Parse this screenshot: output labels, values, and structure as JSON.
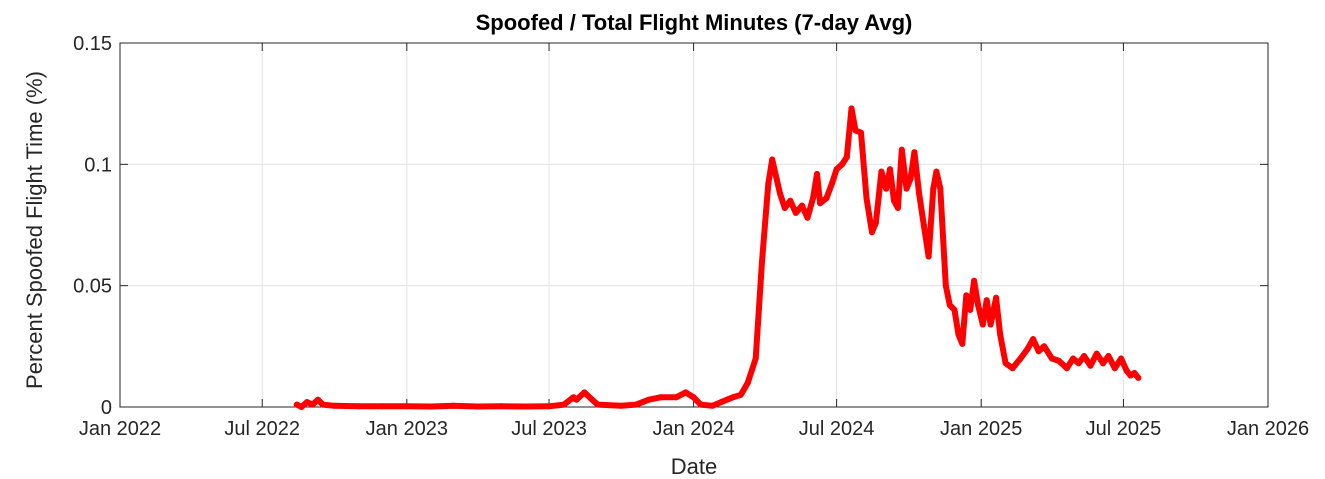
{
  "chart_data": {
    "type": "line",
    "title": "Spoofed / Total Flight Minutes (7-day Avg)",
    "xlabel": "Date",
    "ylabel": "Percent Spoofed Flight Time (%)",
    "ylim": [
      0,
      0.15
    ],
    "xlim": [
      "2022-01-01",
      "2026-01-01"
    ],
    "grid": true,
    "y_ticks": [
      {
        "value": 0,
        "label": "0"
      },
      {
        "value": 0.05,
        "label": "0.05"
      },
      {
        "value": 0.1,
        "label": "0.1"
      },
      {
        "value": 0.15,
        "label": "0.15"
      }
    ],
    "x_ticks": [
      {
        "value": "2022-01-01",
        "label": "Jan 2022"
      },
      {
        "value": "2022-07-01",
        "label": "Jul 2022"
      },
      {
        "value": "2023-01-01",
        "label": "Jan 2023"
      },
      {
        "value": "2023-07-01",
        "label": "Jul 2023"
      },
      {
        "value": "2024-01-01",
        "label": "Jan 2024"
      },
      {
        "value": "2024-07-01",
        "label": "Jul 2024"
      },
      {
        "value": "2025-01-01",
        "label": "Jan 2025"
      },
      {
        "value": "2025-07-01",
        "label": "Jul 2025"
      },
      {
        "value": "2026-01-01",
        "label": "Jan 2026"
      }
    ],
    "series": [
      {
        "color": "#ff0000",
        "points": [
          [
            "2022-08-14",
            0.001
          ],
          [
            "2022-08-20",
            0.0
          ],
          [
            "2022-08-27",
            0.002
          ],
          [
            "2022-09-03",
            0.001
          ],
          [
            "2022-09-10",
            0.003
          ],
          [
            "2022-09-16",
            0.001
          ],
          [
            "2022-10-01",
            0.0005
          ],
          [
            "2022-11-01",
            0.0003
          ],
          [
            "2022-12-01",
            0.0003
          ],
          [
            "2023-01-01",
            0.0003
          ],
          [
            "2023-02-01",
            0.0002
          ],
          [
            "2023-03-01",
            0.0005
          ],
          [
            "2023-04-01",
            0.0002
          ],
          [
            "2023-05-01",
            0.0003
          ],
          [
            "2023-06-01",
            0.0002
          ],
          [
            "2023-07-01",
            0.0003
          ],
          [
            "2023-07-20",
            0.001
          ],
          [
            "2023-08-01",
            0.004
          ],
          [
            "2023-08-05",
            0.003
          ],
          [
            "2023-08-15",
            0.006
          ],
          [
            "2023-08-25",
            0.003
          ],
          [
            "2023-09-01",
            0.001
          ],
          [
            "2023-10-01",
            0.0005
          ],
          [
            "2023-10-20",
            0.001
          ],
          [
            "2023-11-05",
            0.003
          ],
          [
            "2023-11-20",
            0.004
          ],
          [
            "2023-12-10",
            0.004
          ],
          [
            "2023-12-22",
            0.006
          ],
          [
            "2024-01-01",
            0.004
          ],
          [
            "2024-01-10",
            0.001
          ],
          [
            "2024-01-25",
            0.0005
          ],
          [
            "2024-02-05",
            0.002
          ],
          [
            "2024-02-20",
            0.004
          ],
          [
            "2024-03-01",
            0.005
          ],
          [
            "2024-03-10",
            0.01
          ],
          [
            "2024-03-20",
            0.02
          ],
          [
            "2024-03-28",
            0.06
          ],
          [
            "2024-04-05",
            0.092
          ],
          [
            "2024-04-10",
            0.102
          ],
          [
            "2024-04-15",
            0.095
          ],
          [
            "2024-04-20",
            0.088
          ],
          [
            "2024-04-26",
            0.082
          ],
          [
            "2024-05-03",
            0.085
          ],
          [
            "2024-05-10",
            0.08
          ],
          [
            "2024-05-18",
            0.083
          ],
          [
            "2024-05-25",
            0.078
          ],
          [
            "2024-06-01",
            0.086
          ],
          [
            "2024-06-06",
            0.096
          ],
          [
            "2024-06-10",
            0.084
          ],
          [
            "2024-06-18",
            0.086
          ],
          [
            "2024-06-25",
            0.092
          ],
          [
            "2024-07-01",
            0.098
          ],
          [
            "2024-07-08",
            0.1
          ],
          [
            "2024-07-14",
            0.103
          ],
          [
            "2024-07-20",
            0.123
          ],
          [
            "2024-07-25",
            0.114
          ],
          [
            "2024-08-01",
            0.113
          ],
          [
            "2024-08-08",
            0.086
          ],
          [
            "2024-08-15",
            0.072
          ],
          [
            "2024-08-20",
            0.076
          ],
          [
            "2024-08-27",
            0.097
          ],
          [
            "2024-09-02",
            0.09
          ],
          [
            "2024-09-07",
            0.098
          ],
          [
            "2024-09-12",
            0.085
          ],
          [
            "2024-09-17",
            0.082
          ],
          [
            "2024-09-22",
            0.106
          ],
          [
            "2024-09-28",
            0.09
          ],
          [
            "2024-10-03",
            0.094
          ],
          [
            "2024-10-08",
            0.105
          ],
          [
            "2024-10-14",
            0.088
          ],
          [
            "2024-10-20",
            0.075
          ],
          [
            "2024-10-26",
            0.062
          ],
          [
            "2024-11-01",
            0.09
          ],
          [
            "2024-11-05",
            0.097
          ],
          [
            "2024-11-10",
            0.09
          ],
          [
            "2024-11-17",
            0.05
          ],
          [
            "2024-11-22",
            0.042
          ],
          [
            "2024-11-28",
            0.04
          ],
          [
            "2024-12-03",
            0.03
          ],
          [
            "2024-12-08",
            0.026
          ],
          [
            "2024-12-13",
            0.046
          ],
          [
            "2024-12-18",
            0.04
          ],
          [
            "2024-12-23",
            0.052
          ],
          [
            "2024-12-28",
            0.042
          ],
          [
            "2025-01-03",
            0.034
          ],
          [
            "2025-01-08",
            0.044
          ],
          [
            "2025-01-13",
            0.034
          ],
          [
            "2025-01-20",
            0.045
          ],
          [
            "2025-01-25",
            0.03
          ],
          [
            "2025-02-01",
            0.018
          ],
          [
            "2025-02-10",
            0.016
          ],
          [
            "2025-02-20",
            0.02
          ],
          [
            "2025-03-01",
            0.024
          ],
          [
            "2025-03-08",
            0.028
          ],
          [
            "2025-03-15",
            0.023
          ],
          [
            "2025-03-22",
            0.025
          ],
          [
            "2025-04-01",
            0.02
          ],
          [
            "2025-04-10",
            0.019
          ],
          [
            "2025-04-20",
            0.016
          ],
          [
            "2025-04-28",
            0.02
          ],
          [
            "2025-05-05",
            0.018
          ],
          [
            "2025-05-12",
            0.021
          ],
          [
            "2025-05-20",
            0.017
          ],
          [
            "2025-05-28",
            0.022
          ],
          [
            "2025-06-05",
            0.018
          ],
          [
            "2025-06-12",
            0.021
          ],
          [
            "2025-06-20",
            0.016
          ],
          [
            "2025-06-28",
            0.02
          ],
          [
            "2025-07-05",
            0.015
          ],
          [
            "2025-07-10",
            0.013
          ],
          [
            "2025-07-15",
            0.014
          ],
          [
            "2025-07-20",
            0.012
          ]
        ]
      }
    ]
  }
}
